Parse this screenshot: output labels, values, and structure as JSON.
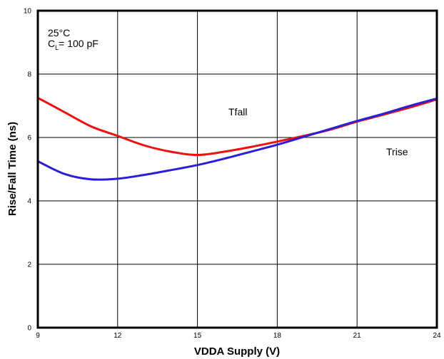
{
  "chart_data": {
    "type": "line",
    "title": "",
    "xlabel": "VDDA Supply (V)",
    "ylabel": "Rise/Fall Time (ns)",
    "xlim": [
      9,
      24
    ],
    "ylim": [
      0,
      10
    ],
    "xticks": [
      9,
      12,
      15,
      18,
      21,
      24
    ],
    "yticks": [
      0,
      2,
      4,
      6,
      8,
      10
    ],
    "grid": true,
    "annotations": {
      "temperature": "25°C",
      "load_prefix": "C",
      "load_subscript": "L",
      "load_suffix": "= 100 pF",
      "tfall_label": "Tfall",
      "trise_label": "Trise"
    },
    "series": [
      {
        "name": "Tfall",
        "color": "#ee1111",
        "points": [
          [
            9,
            7.25
          ],
          [
            10,
            6.8
          ],
          [
            11,
            6.35
          ],
          [
            12,
            6.05
          ],
          [
            13,
            5.75
          ],
          [
            14,
            5.55
          ],
          [
            15,
            5.45
          ],
          [
            16,
            5.55
          ],
          [
            17,
            5.7
          ],
          [
            18,
            5.87
          ],
          [
            19,
            6.05
          ],
          [
            20,
            6.25
          ],
          [
            21,
            6.5
          ],
          [
            22,
            6.72
          ],
          [
            23,
            6.95
          ],
          [
            24,
            7.2
          ]
        ]
      },
      {
        "name": "Trise",
        "color": "#2a1fd6",
        "points": [
          [
            9,
            5.25
          ],
          [
            10,
            4.85
          ],
          [
            11,
            4.68
          ],
          [
            12,
            4.7
          ],
          [
            13,
            4.82
          ],
          [
            14,
            4.97
          ],
          [
            15,
            5.13
          ],
          [
            16,
            5.33
          ],
          [
            17,
            5.55
          ],
          [
            18,
            5.77
          ],
          [
            19,
            6.02
          ],
          [
            20,
            6.27
          ],
          [
            21,
            6.52
          ],
          [
            22,
            6.75
          ],
          [
            23,
            7.0
          ],
          [
            24,
            7.23
          ]
        ]
      }
    ]
  }
}
